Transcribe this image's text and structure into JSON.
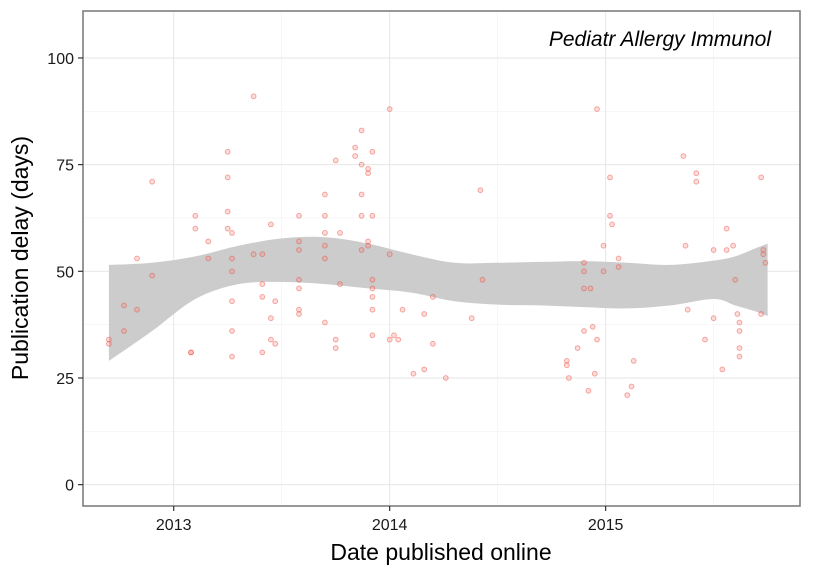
{
  "chart_data": {
    "type": "scatter",
    "title": "",
    "annotation": "Pediatr Allergy Immunol",
    "xlabel": "Date published online",
    "ylabel": "Publication delay (days)",
    "xlim": [
      2012.58,
      2015.9
    ],
    "ylim": [
      -5,
      111
    ],
    "x_ticks": [
      {
        "value": 2013,
        "label": "2013"
      },
      {
        "value": 2014,
        "label": "2014"
      },
      {
        "value": 2015,
        "label": "2015"
      }
    ],
    "y_ticks": [
      {
        "value": 0,
        "label": "0"
      },
      {
        "value": 25,
        "label": "25"
      },
      {
        "value": 50,
        "label": "50"
      },
      {
        "value": 75,
        "label": "75"
      },
      {
        "value": 100,
        "label": "100"
      }
    ],
    "grid": true,
    "point_color": "#f8766d",
    "point_stroke": "#e8473d",
    "band_color": "#cccccc",
    "points": [
      [
        2012.7,
        34
      ],
      [
        2012.7,
        33
      ],
      [
        2012.77,
        42
      ],
      [
        2012.77,
        36
      ],
      [
        2012.83,
        53
      ],
      [
        2012.83,
        41
      ],
      [
        2012.9,
        71
      ],
      [
        2012.9,
        49
      ],
      [
        2013.08,
        31
      ],
      [
        2013.08,
        31
      ],
      [
        2013.1,
        63
      ],
      [
        2013.1,
        60
      ],
      [
        2013.16,
        57
      ],
      [
        2013.16,
        53
      ],
      [
        2013.25,
        78
      ],
      [
        2013.25,
        72
      ],
      [
        2013.25,
        64
      ],
      [
        2013.25,
        60
      ],
      [
        2013.27,
        59
      ],
      [
        2013.27,
        53
      ],
      [
        2013.27,
        50
      ],
      [
        2013.27,
        43
      ],
      [
        2013.27,
        36
      ],
      [
        2013.27,
        30
      ],
      [
        2013.37,
        91
      ],
      [
        2013.37,
        54
      ],
      [
        2013.41,
        54
      ],
      [
        2013.41,
        47
      ],
      [
        2013.41,
        44
      ],
      [
        2013.41,
        31
      ],
      [
        2013.45,
        61
      ],
      [
        2013.45,
        39
      ],
      [
        2013.45,
        34
      ],
      [
        2013.47,
        43
      ],
      [
        2013.47,
        33
      ],
      [
        2013.58,
        63
      ],
      [
        2013.58,
        57
      ],
      [
        2013.58,
        55
      ],
      [
        2013.58,
        48
      ],
      [
        2013.58,
        46
      ],
      [
        2013.58,
        41
      ],
      [
        2013.58,
        40
      ],
      [
        2013.7,
        68
      ],
      [
        2013.7,
        63
      ],
      [
        2013.7,
        59
      ],
      [
        2013.7,
        56
      ],
      [
        2013.7,
        53
      ],
      [
        2013.7,
        38
      ],
      [
        2013.75,
        76
      ],
      [
        2013.75,
        34
      ],
      [
        2013.75,
        32
      ],
      [
        2013.77,
        59
      ],
      [
        2013.77,
        47
      ],
      [
        2013.84,
        79
      ],
      [
        2013.84,
        77
      ],
      [
        2013.87,
        83
      ],
      [
        2013.87,
        75
      ],
      [
        2013.87,
        68
      ],
      [
        2013.87,
        63
      ],
      [
        2013.87,
        55
      ],
      [
        2013.9,
        74
      ],
      [
        2013.9,
        73
      ],
      [
        2013.9,
        57
      ],
      [
        2013.9,
        56
      ],
      [
        2013.92,
        78
      ],
      [
        2013.92,
        63
      ],
      [
        2013.92,
        48
      ],
      [
        2013.92,
        46
      ],
      [
        2013.92,
        44
      ],
      [
        2013.92,
        41
      ],
      [
        2013.92,
        35
      ],
      [
        2014.0,
        88
      ],
      [
        2014.0,
        54
      ],
      [
        2014.0,
        34
      ],
      [
        2014.02,
        35
      ],
      [
        2014.04,
        34
      ],
      [
        2014.06,
        41
      ],
      [
        2014.11,
        26
      ],
      [
        2014.16,
        40
      ],
      [
        2014.16,
        27
      ],
      [
        2014.2,
        44
      ],
      [
        2014.2,
        33
      ],
      [
        2014.26,
        25
      ],
      [
        2014.38,
        39
      ],
      [
        2014.42,
        69
      ],
      [
        2014.43,
        48
      ],
      [
        2014.82,
        29
      ],
      [
        2014.82,
        28
      ],
      [
        2014.83,
        25
      ],
      [
        2014.87,
        32
      ],
      [
        2014.9,
        52
      ],
      [
        2014.9,
        50
      ],
      [
        2014.9,
        46
      ],
      [
        2014.9,
        36
      ],
      [
        2014.92,
        22
      ],
      [
        2014.93,
        46
      ],
      [
        2014.96,
        88
      ],
      [
        2014.96,
        34
      ],
      [
        2014.95,
        26
      ],
      [
        2014.94,
        37
      ],
      [
        2014.99,
        56
      ],
      [
        2014.99,
        50
      ],
      [
        2015.02,
        72
      ],
      [
        2015.02,
        63
      ],
      [
        2015.03,
        61
      ],
      [
        2015.06,
        53
      ],
      [
        2015.06,
        51
      ],
      [
        2015.1,
        21
      ],
      [
        2015.12,
        23
      ],
      [
        2015.13,
        29
      ],
      [
        2015.36,
        77
      ],
      [
        2015.37,
        56
      ],
      [
        2015.38,
        41
      ],
      [
        2015.42,
        73
      ],
      [
        2015.42,
        71
      ],
      [
        2015.46,
        34
      ],
      [
        2015.5,
        55
      ],
      [
        2015.5,
        39
      ],
      [
        2015.54,
        27
      ],
      [
        2015.56,
        60
      ],
      [
        2015.56,
        55
      ],
      [
        2015.59,
        56
      ],
      [
        2015.6,
        48
      ],
      [
        2015.61,
        40
      ],
      [
        2015.62,
        38
      ],
      [
        2015.62,
        36
      ],
      [
        2015.62,
        32
      ],
      [
        2015.62,
        30
      ],
      [
        2015.72,
        72
      ],
      [
        2015.73,
        55
      ],
      [
        2015.73,
        54
      ],
      [
        2015.74,
        52
      ],
      [
        2015.72,
        40
      ]
    ],
    "band": {
      "x": [
        2012.7,
        2012.9,
        2013.1,
        2013.3,
        2013.5,
        2013.7,
        2013.9,
        2014.1,
        2014.3,
        2014.5,
        2014.7,
        2014.9,
        2015.1,
        2015.3,
        2015.5,
        2015.6,
        2015.7,
        2015.75
      ],
      "upper": [
        51.5,
        52,
        53.5,
        56,
        57.7,
        58,
        56.5,
        54,
        52,
        52,
        52.2,
        52.4,
        52,
        51.5,
        52.5,
        53.5,
        55.5,
        56.5
      ],
      "lower": [
        29,
        36,
        43.5,
        47,
        47.5,
        47,
        46,
        45,
        43,
        42.2,
        42,
        41.6,
        41.3,
        42,
        43.5,
        42,
        40.5,
        39.5
      ]
    }
  }
}
